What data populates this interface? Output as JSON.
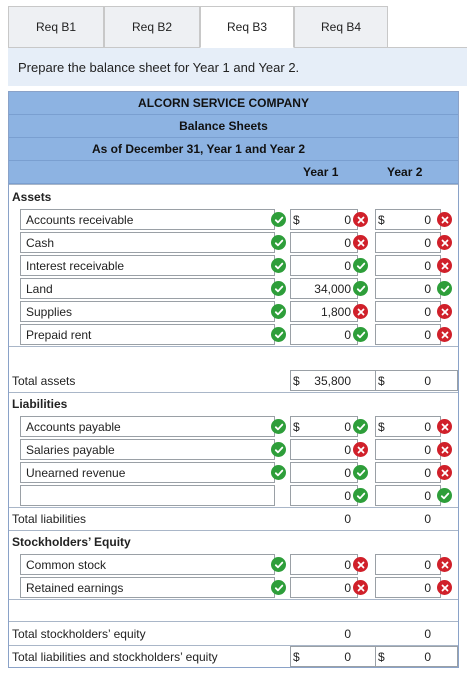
{
  "tabs": [
    "Req B1",
    "Req B2",
    "Req B3",
    "Req B4"
  ],
  "active_tab": "Req B3",
  "instruction": "Prepare the balance sheet for Year 1 and Year 2.",
  "header": {
    "company": "ALCORN SERVICE COMPANY",
    "statement": "Balance Sheets",
    "date": "As of December 31, Year 1 and Year 2",
    "col_year1": "Year 1",
    "col_year2": "Year 2"
  },
  "sections": {
    "assets": "Assets",
    "liabilities": "Liabilities",
    "equity": "Stockholders’ Equity"
  },
  "assets": [
    {
      "label": "Accounts receivable",
      "y1": "0",
      "y1_status": "wrong",
      "y2": "0",
      "y2_status": "wrong",
      "dollar": true
    },
    {
      "label": "Cash",
      "y1": "0",
      "y1_status": "wrong",
      "y2": "0",
      "y2_status": "wrong",
      "dollar": false
    },
    {
      "label": "Interest receivable",
      "y1": "0",
      "y1_status": "correct",
      "y2": "0",
      "y2_status": "wrong",
      "dollar": false
    },
    {
      "label": "Land",
      "y1": "34,000",
      "y1_status": "correct",
      "y2": "0",
      "y2_status": "correct",
      "dollar": false
    },
    {
      "label": "Supplies",
      "y1": "1,800",
      "y1_status": "wrong",
      "y2": "0",
      "y2_status": "wrong",
      "dollar": false
    },
    {
      "label": "Prepaid rent",
      "y1": "0",
      "y1_status": "correct",
      "y2": "0",
      "y2_status": "wrong",
      "dollar": false
    }
  ],
  "total_assets": {
    "label": "Total assets",
    "y1": "35,800",
    "y2": "0"
  },
  "liabilities": [
    {
      "label": "Accounts payable",
      "y1": "0",
      "y1_status": "correct",
      "y2": "0",
      "y2_status": "wrong",
      "dollar": true
    },
    {
      "label": "Salaries payable",
      "y1": "0",
      "y1_status": "wrong",
      "y2": "0",
      "y2_status": "wrong",
      "dollar": false
    },
    {
      "label": "Unearned revenue",
      "y1": "0",
      "y1_status": "correct",
      "y2": "0",
      "y2_status": "wrong",
      "dollar": false
    },
    {
      "label": "",
      "y1": "0",
      "y1_status": "correct",
      "y2": "0",
      "y2_status": "correct",
      "dollar": false
    }
  ],
  "total_liabilities": {
    "label": "Total liabilities",
    "y1": "0",
    "y2": "0"
  },
  "equity": [
    {
      "label": "Common stock",
      "y1": "0",
      "y1_status": "wrong",
      "y2": "0",
      "y2_status": "wrong"
    },
    {
      "label": "Retained earnings",
      "y1": "0",
      "y1_status": "wrong",
      "y2": "0",
      "y2_status": "wrong"
    }
  ],
  "total_equity": {
    "label": "Total stockholders’ equity",
    "y1": "0",
    "y2": "0"
  },
  "total_le": {
    "label": "Total liabilities and stockholders’ equity",
    "y1": "0",
    "y2": "0"
  },
  "currency_symbol": "$",
  "colors": {
    "correct": "#2e9e3a",
    "wrong": "#d0202a",
    "header_bg": "#8db3e2",
    "instr_bg": "#e6eef8"
  }
}
